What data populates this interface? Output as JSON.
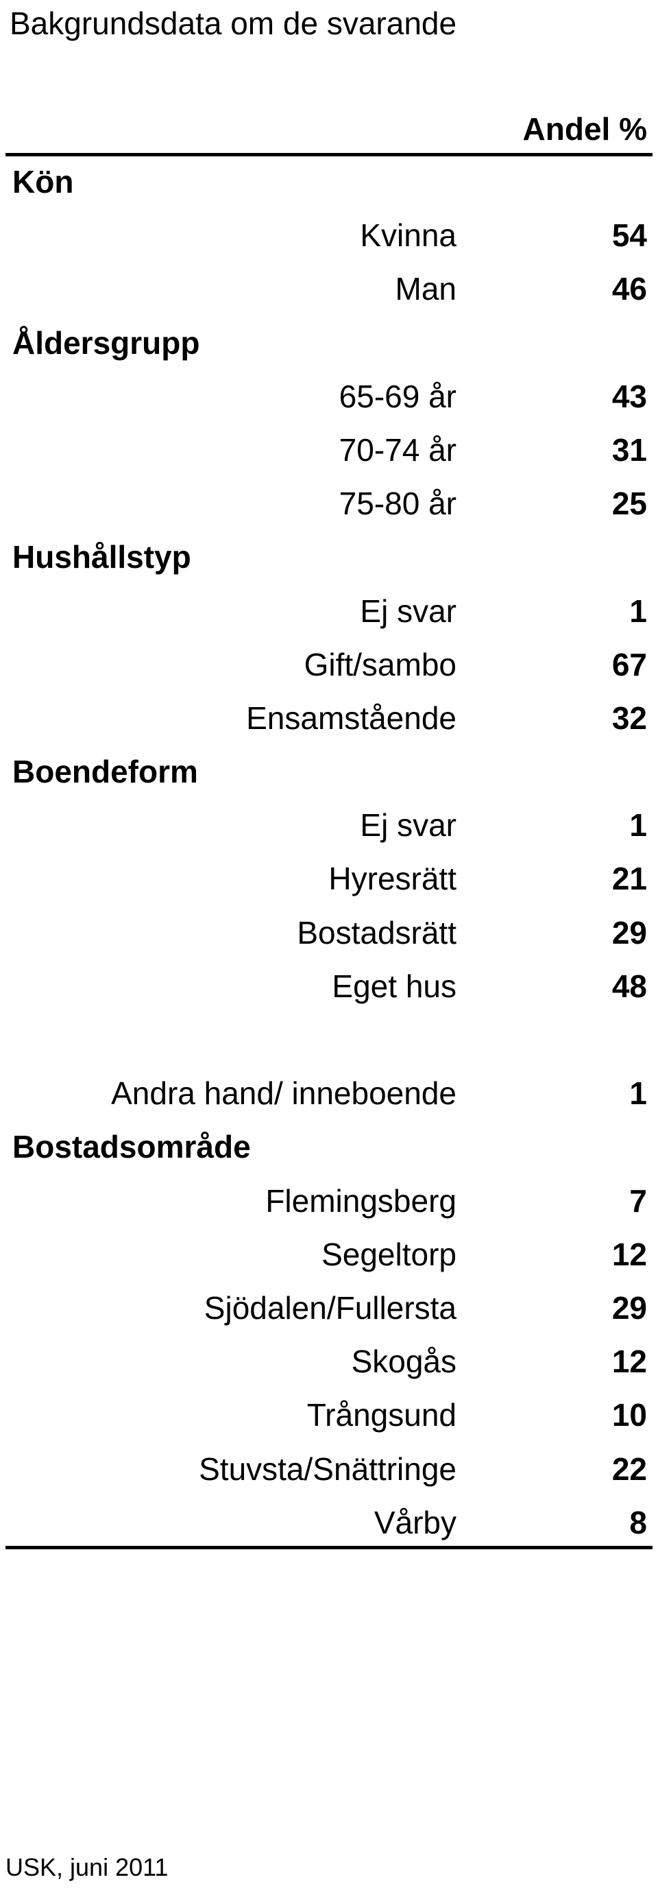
{
  "title": "Bakgrundsdata om de svarande",
  "header": "Andel %",
  "groups": [
    {
      "label": "Kön",
      "rows": [
        {
          "label": "Kvinna",
          "value": "54"
        },
        {
          "label": "Man",
          "value": "46"
        }
      ]
    },
    {
      "label": "Åldersgrupp",
      "rows": [
        {
          "label": "65-69 år",
          "value": "43"
        },
        {
          "label": "70-74 år",
          "value": "31"
        },
        {
          "label": "75-80 år",
          "value": "25"
        }
      ]
    },
    {
      "label": "Hushållstyp",
      "rows": [
        {
          "label": "Ej svar",
          "value": "1"
        },
        {
          "label": "Gift/sambo",
          "value": "67"
        },
        {
          "label": "Ensamstående",
          "value": "32"
        }
      ]
    },
    {
      "label": "Boendeform",
      "rows": [
        {
          "label": "Ej svar",
          "value": "1"
        },
        {
          "label": "Hyresrätt",
          "value": "21"
        },
        {
          "label": "Bostadsrätt",
          "value": "29"
        },
        {
          "label": "Eget hus",
          "value": "48"
        },
        {
          "label": "",
          "value": ""
        },
        {
          "label": "Andra hand/ inneboende",
          "value": "1"
        }
      ]
    },
    {
      "label": "Bostadsområde",
      "rows": [
        {
          "label": "Flemingsberg",
          "value": "7"
        },
        {
          "label": "Segeltorp",
          "value": "12"
        },
        {
          "label": "Sjödalen/Fullersta",
          "value": "29"
        },
        {
          "label": "Skogås",
          "value": "12"
        },
        {
          "label": "Trångsund",
          "value": "10"
        },
        {
          "label": "Stuvsta/Snättringe",
          "value": "22"
        },
        {
          "label": "Vårby",
          "value": "8"
        }
      ]
    }
  ],
  "footer": "USK, juni 2011"
}
